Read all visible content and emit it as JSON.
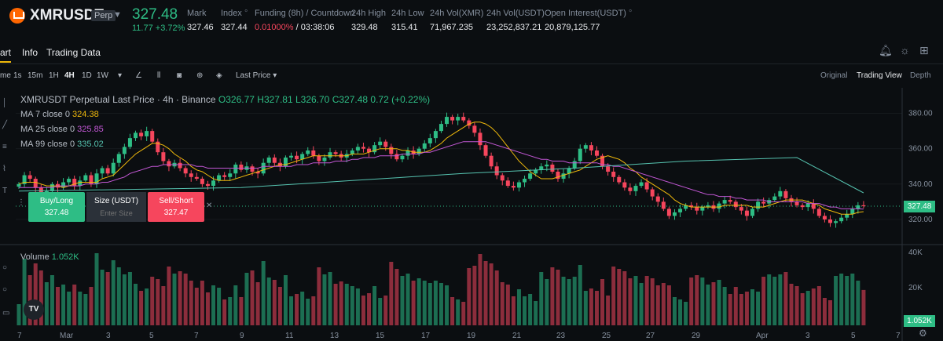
{
  "header": {
    "symbol": "XMRUSDT",
    "badge": "Perp",
    "last_price": "327.48",
    "change": "11.77 +3.72%",
    "stats": [
      {
        "label": "Mark",
        "value": "327.46"
      },
      {
        "label": "Index",
        "value": "327.44"
      },
      {
        "label": "Funding (8h) / Countdown",
        "value_red": "0.01000%",
        "value": " / 03:38:06"
      },
      {
        "label": "24h High",
        "value": "329.48"
      },
      {
        "label": "24h Low",
        "value": "315.41"
      },
      {
        "label": "24h Vol(XMR)",
        "value": "71,967.235"
      },
      {
        "label": "24h Vol(USDT)",
        "value": "23,252,837.21"
      },
      {
        "label": "Open Interest(USDT)",
        "value": "20,879,125.77"
      }
    ]
  },
  "tabs": [
    "art",
    "Info",
    "Trading Data"
  ],
  "toolbar": {
    "intervals": [
      "me",
      "1s",
      "15m",
      "1H",
      "4H",
      "1D",
      "1W"
    ],
    "active_interval": "4H",
    "price_type": "Last Price",
    "views": [
      "Original",
      "Trading View",
      "Depth"
    ],
    "active_view": "Trading View"
  },
  "legend": {
    "title": "XMRUSDT Perpetual Last Price · 4h · Binance",
    "ohlc": "O326.77 H327.81 L326.70 C327.48 0.72 (+0.22%)",
    "ma7_label": "MA 7 close 0",
    "ma7": "324.38",
    "ma25_label": "MA 25 close 0",
    "ma25": "325.85",
    "ma99_label": "MA 99 close 0",
    "ma99": "335.02",
    "volume_label": "Volume",
    "volume": "1.052K"
  },
  "order_box": {
    "buy_label": "Buy/Long",
    "buy_price": "327.48",
    "size_label": "Size (USDT)",
    "size_placeholder": "Enter Size",
    "sell_label": "Sell/Short",
    "sell_price": "327.47"
  },
  "price_axis": [
    "380.00",
    "360.00",
    "340.00",
    "320.00"
  ],
  "volume_axis": [
    "40K",
    "20K"
  ],
  "current_price_tag": "327.48",
  "current_volume_tag": "1.052K",
  "date_axis": [
    "7",
    "Mar",
    "3",
    "5",
    "7",
    "9",
    "11",
    "13",
    "15",
    "17",
    "19",
    "21",
    "23",
    "25",
    "27",
    "29",
    "Apr",
    "3",
    "5",
    "7"
  ],
  "colors": {
    "up": "#2ebd85",
    "down": "#f6465d",
    "ma7": "#f0b90b",
    "ma25": "#c257d4",
    "ma99": "#56c3b0",
    "accent": "#f0b90b"
  },
  "chart_data": {
    "type": "candlestick",
    "interval": "4h",
    "ylim": [
      308,
      390
    ],
    "closes": [
      340,
      345,
      343,
      338,
      334,
      336,
      340,
      338,
      341,
      343,
      339,
      342,
      345,
      340,
      346,
      349,
      346,
      352,
      357,
      361,
      366,
      369,
      367,
      370,
      364,
      358,
      353,
      350,
      352,
      349,
      346,
      344,
      343,
      340,
      339,
      342,
      345,
      344,
      346,
      351,
      348,
      350,
      347,
      346,
      352,
      355,
      352,
      350,
      355,
      356,
      354,
      357,
      359,
      356,
      353,
      355,
      358,
      357,
      355,
      357,
      359,
      361,
      360,
      358,
      362,
      364,
      361,
      357,
      354,
      356,
      359,
      357,
      360,
      363,
      366,
      370,
      374,
      378,
      376,
      378,
      376,
      373,
      369,
      362,
      356,
      350,
      345,
      342,
      339,
      338,
      341,
      343,
      346,
      348,
      350,
      351,
      347,
      343,
      346,
      349,
      353,
      360,
      362,
      359,
      356,
      350,
      347,
      344,
      341,
      338,
      336,
      339,
      341,
      337,
      333,
      330,
      326,
      322,
      324,
      326,
      328,
      327,
      325,
      327,
      328,
      326,
      329,
      331,
      330,
      327,
      325,
      322,
      326,
      330,
      329,
      331,
      333,
      336,
      332,
      330,
      328,
      327,
      329,
      326,
      322,
      320,
      318,
      319,
      321,
      323,
      326,
      328,
      327.48
    ],
    "ma7": [
      340,
      341,
      341,
      341,
      340,
      339,
      339,
      339,
      338,
      339,
      340,
      341,
      341,
      341,
      341,
      343,
      344,
      345,
      348,
      351,
      354,
      357,
      359,
      361,
      363,
      363,
      362,
      360,
      357,
      355,
      353,
      350,
      348,
      347,
      345,
      343,
      342,
      342,
      342,
      343,
      344,
      345,
      346,
      347,
      348,
      349,
      350,
      351,
      351,
      352,
      353,
      354,
      355,
      356,
      356,
      356,
      356,
      356,
      356,
      356,
      357,
      357,
      357,
      358,
      359,
      360,
      360,
      360,
      360,
      359,
      359,
      358,
      358,
      358,
      359,
      361,
      363,
      366,
      368,
      370,
      372,
      374,
      375,
      375,
      374,
      372,
      369,
      365,
      361,
      357,
      353,
      350,
      347,
      345,
      343,
      343,
      343,
      344,
      345,
      346,
      347,
      348,
      350,
      352,
      354,
      355,
      356,
      355,
      354,
      352,
      349,
      347,
      344,
      342,
      340,
      338,
      336,
      334,
      331,
      329,
      328,
      327,
      327,
      327,
      327,
      327,
      327,
      328,
      328,
      328,
      328,
      328,
      327,
      327,
      327,
      328,
      329,
      330,
      331,
      331,
      331,
      331,
      330,
      329,
      328,
      326,
      325,
      324,
      323,
      323,
      323,
      324,
      324.38
    ],
    "ma25": [
      338,
      338,
      338,
      338,
      338,
      338,
      338,
      339,
      339,
      339,
      339,
      339,
      340,
      340,
      340,
      341,
      341,
      342,
      343,
      344,
      346,
      347,
      348,
      349,
      350,
      350,
      351,
      351,
      351,
      351,
      351,
      351,
      350,
      350,
      349,
      349,
      349,
      349,
      349,
      349,
      349,
      349,
      349,
      349,
      350,
      350,
      350,
      350,
      350,
      350,
      351,
      351,
      351,
      352,
      352,
      352,
      352,
      353,
      353,
      353,
      354,
      354,
      355,
      355,
      355,
      356,
      356,
      356,
      356,
      357,
      357,
      357,
      357,
      358,
      358,
      359,
      360,
      361,
      362,
      363,
      364,
      364,
      364,
      364,
      364,
      363,
      362,
      361,
      360,
      359,
      358,
      357,
      356,
      355,
      354,
      354,
      353,
      353,
      353,
      352,
      352,
      352,
      352,
      352,
      352,
      351,
      351,
      350,
      350,
      349,
      348,
      347,
      346,
      345,
      344,
      343,
      342,
      341,
      340,
      339,
      338,
      337,
      336,
      335,
      334,
      334,
      333,
      333,
      333,
      332,
      332,
      331,
      331,
      331,
      331,
      330,
      330,
      330,
      330,
      330,
      330,
      330,
      329,
      329,
      329,
      328,
      327,
      327,
      326,
      326,
      326,
      326,
      325.85
    ],
    "ma99_points": [
      [
        0,
        336
      ],
      [
        20,
        337
      ],
      [
        40,
        338
      ],
      [
        60,
        342
      ],
      [
        80,
        346
      ],
      [
        100,
        349
      ],
      [
        120,
        353
      ],
      [
        140,
        355
      ],
      [
        152,
        335.02
      ]
    ]
  }
}
